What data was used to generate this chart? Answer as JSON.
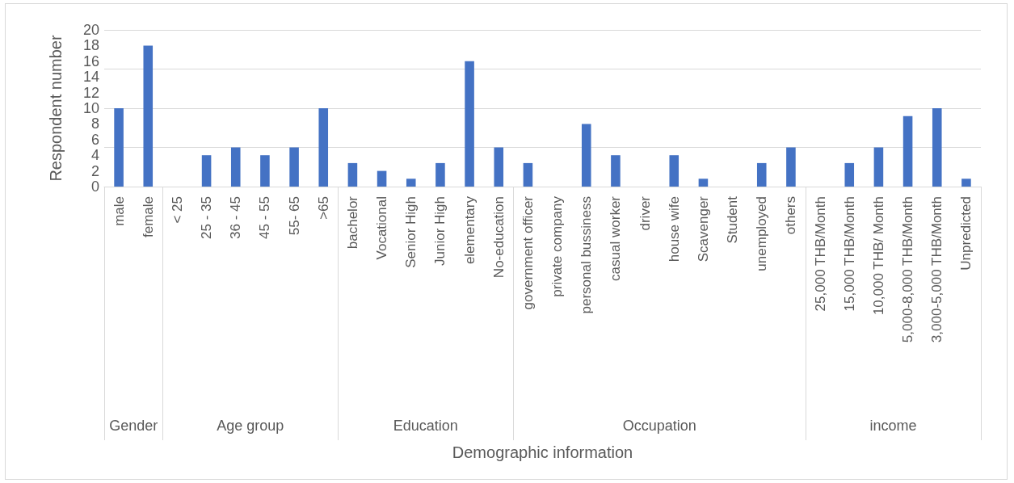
{
  "chart_data": {
    "type": "bar",
    "ylabel": "Respondent number",
    "categories": [
      "male",
      "female",
      "< 25",
      "25 - 35",
      "36 - 45",
      "45 - 55",
      "55- 65",
      ">65",
      "bachelor",
      "Vocational",
      "Senior High",
      "Junior High",
      "elementary",
      "No-education",
      "government officer",
      "private company",
      "personal bussiness",
      "casual worker",
      "driver",
      "house wife",
      "Scavenger",
      "Student",
      "unemployed",
      "others",
      "25,000 THB/Month",
      "15,000 THB/Month",
      "10,000 THB/ Month",
      "5,000-8,000 THB/Month",
      "3,000-5,000 THB/Month",
      "Unpredicted"
    ],
    "series": [
      {
        "color": "#4472c4",
        "values": [
          10,
          18,
          null,
          null,
          null,
          null,
          null,
          null,
          null,
          null,
          null,
          null,
          null,
          null,
          null,
          null,
          null,
          null,
          null,
          null,
          null,
          null,
          null,
          null,
          null,
          null,
          null,
          null,
          null,
          null
        ]
      },
      {
        "color": "#4472c4",
        "values": [
          null,
          null,
          0,
          4,
          5,
          4,
          5,
          10,
          null,
          null,
          null,
          null,
          null,
          null,
          null,
          null,
          null,
          null,
          null,
          null,
          null,
          null,
          null,
          null,
          null,
          null,
          null,
          null,
          null,
          null
        ]
      },
      {
        "color": "#4472c4",
        "values": [
          null,
          null,
          null,
          null,
          null,
          null,
          null,
          null,
          3,
          2,
          1,
          3,
          16,
          5,
          null,
          null,
          null,
          null,
          null,
          null,
          null,
          null,
          null,
          null,
          null,
          null,
          null,
          null,
          null,
          null
        ]
      },
      {
        "color": "#4472c4",
        "values": [
          null,
          null,
          null,
          null,
          null,
          null,
          null,
          null,
          null,
          null,
          null,
          null,
          null,
          null,
          3,
          0,
          8,
          4,
          0,
          4,
          1,
          0,
          3,
          5,
          null,
          null,
          null,
          null,
          null,
          null
        ]
      },
      {
        "color": "#4472c4",
        "values": [
          null,
          null,
          null,
          null,
          null,
          null,
          null,
          null,
          null,
          null,
          null,
          null,
          null,
          null,
          null,
          null,
          null,
          null,
          null,
          null,
          null,
          null,
          null,
          null,
          0,
          3,
          5,
          9,
          10,
          1
        ]
      }
    ],
    "ylim": [
      0,
      20
    ],
    "yticks": [
      0,
      2,
      4,
      6,
      8,
      10,
      12,
      14,
      16,
      18,
      20
    ],
    "grid": "y",
    "annotations": [
      "Gender",
      "Age group",
      "Education",
      "Occupation",
      "income",
      "Demographic information"
    ]
  }
}
